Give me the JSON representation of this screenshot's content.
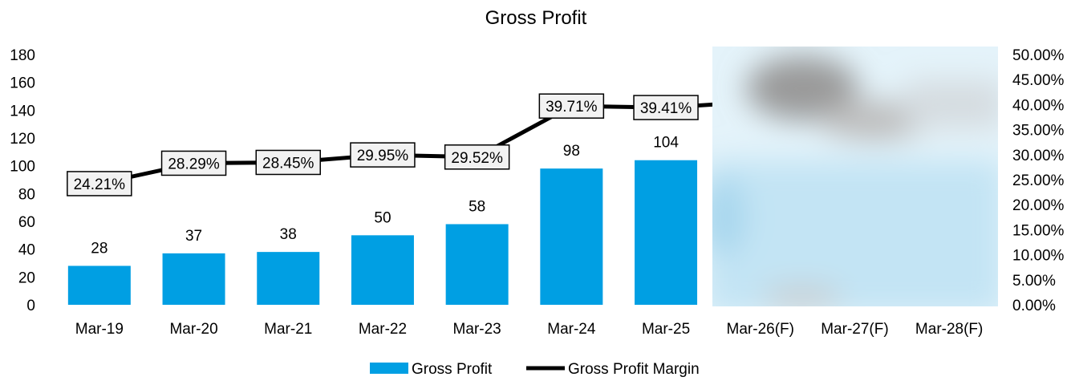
{
  "chart_data": {
    "type": "bar",
    "title": "Gross Profit",
    "categories": [
      "Mar-19",
      "Mar-20",
      "Mar-21",
      "Mar-22",
      "Mar-23",
      "Mar-24",
      "Mar-25",
      "Mar-26(F)",
      "Mar-27(F)",
      "Mar-28(F)"
    ],
    "series": [
      {
        "name": "Gross Profit",
        "type": "bar",
        "axis": "left",
        "color": "#009FE3",
        "values": [
          28,
          37,
          38,
          50,
          58,
          98,
          104,
          null,
          null,
          null
        ],
        "labels": [
          "28",
          "37",
          "38",
          "50",
          "58",
          "98",
          "104",
          null,
          null,
          null
        ]
      },
      {
        "name": "Gross Profit Margin",
        "type": "line",
        "axis": "right",
        "color": "#000000",
        "values": [
          24.21,
          28.29,
          28.45,
          29.95,
          29.52,
          39.71,
          39.41,
          null,
          null,
          null
        ],
        "labels": [
          "24.21%",
          "28.29%",
          "28.45%",
          "29.95%",
          "29.52%",
          "39.71%",
          "39.41%",
          null,
          null,
          null
        ]
      }
    ],
    "y_left": {
      "min": 0,
      "max": 180,
      "ticks": [
        "0",
        "20",
        "40",
        "60",
        "80",
        "100",
        "120",
        "140",
        "160",
        "180"
      ]
    },
    "y_right": {
      "min": 0,
      "max": 50,
      "ticks": [
        "0.00%",
        "5.00%",
        "10.00%",
        "15.00%",
        "20.00%",
        "25.00%",
        "30.00%",
        "35.00%",
        "40.00%",
        "45.00%",
        "50.00%"
      ]
    },
    "grid": false,
    "legend": "bottom",
    "obscured_region": "forecast years (Mar-26(F) to Mar-28(F)) blurred"
  }
}
